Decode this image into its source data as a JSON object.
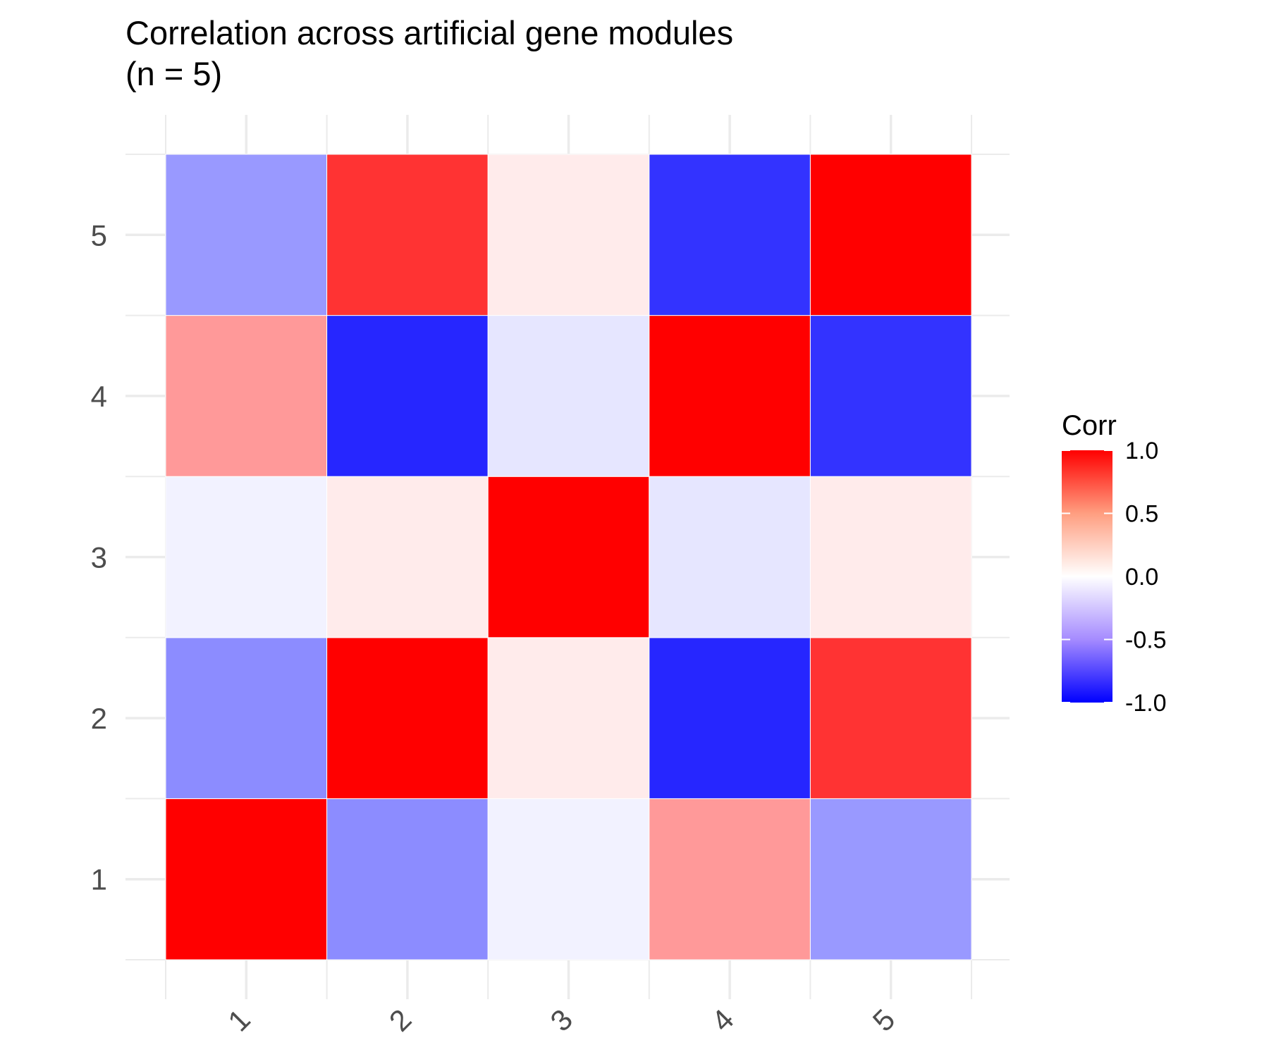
{
  "chart_data": {
    "type": "heatmap",
    "title": "Correlation across artificial gene modules\n(n = 5)",
    "x_categories": [
      "1",
      "2",
      "3",
      "4",
      "5"
    ],
    "y_categories": [
      "1",
      "2",
      "3",
      "4",
      "5"
    ],
    "matrix": [
      [
        1.0,
        -0.45,
        -0.05,
        0.4,
        -0.4
      ],
      [
        -0.45,
        1.0,
        0.08,
        -0.85,
        0.8
      ],
      [
        -0.05,
        0.08,
        1.0,
        -0.1,
        0.08
      ],
      [
        0.4,
        -0.85,
        -0.1,
        1.0,
        -0.8
      ],
      [
        -0.4,
        0.8,
        0.08,
        -0.8,
        1.0
      ]
    ],
    "color_scale": {
      "low": "#0000FF",
      "mid": "#FFFFFF",
      "high": "#FF0000",
      "limits": [
        -1,
        1
      ]
    },
    "legend": {
      "title": "Corr",
      "ticks": [
        1.0,
        0.5,
        0.0,
        -0.5,
        -1.0
      ],
      "tick_labels": [
        "1.0",
        "0.5",
        "0.0",
        "-0.5",
        "-1.0"
      ],
      "position": "right"
    },
    "grid": true,
    "xlabel": "",
    "ylabel": ""
  }
}
